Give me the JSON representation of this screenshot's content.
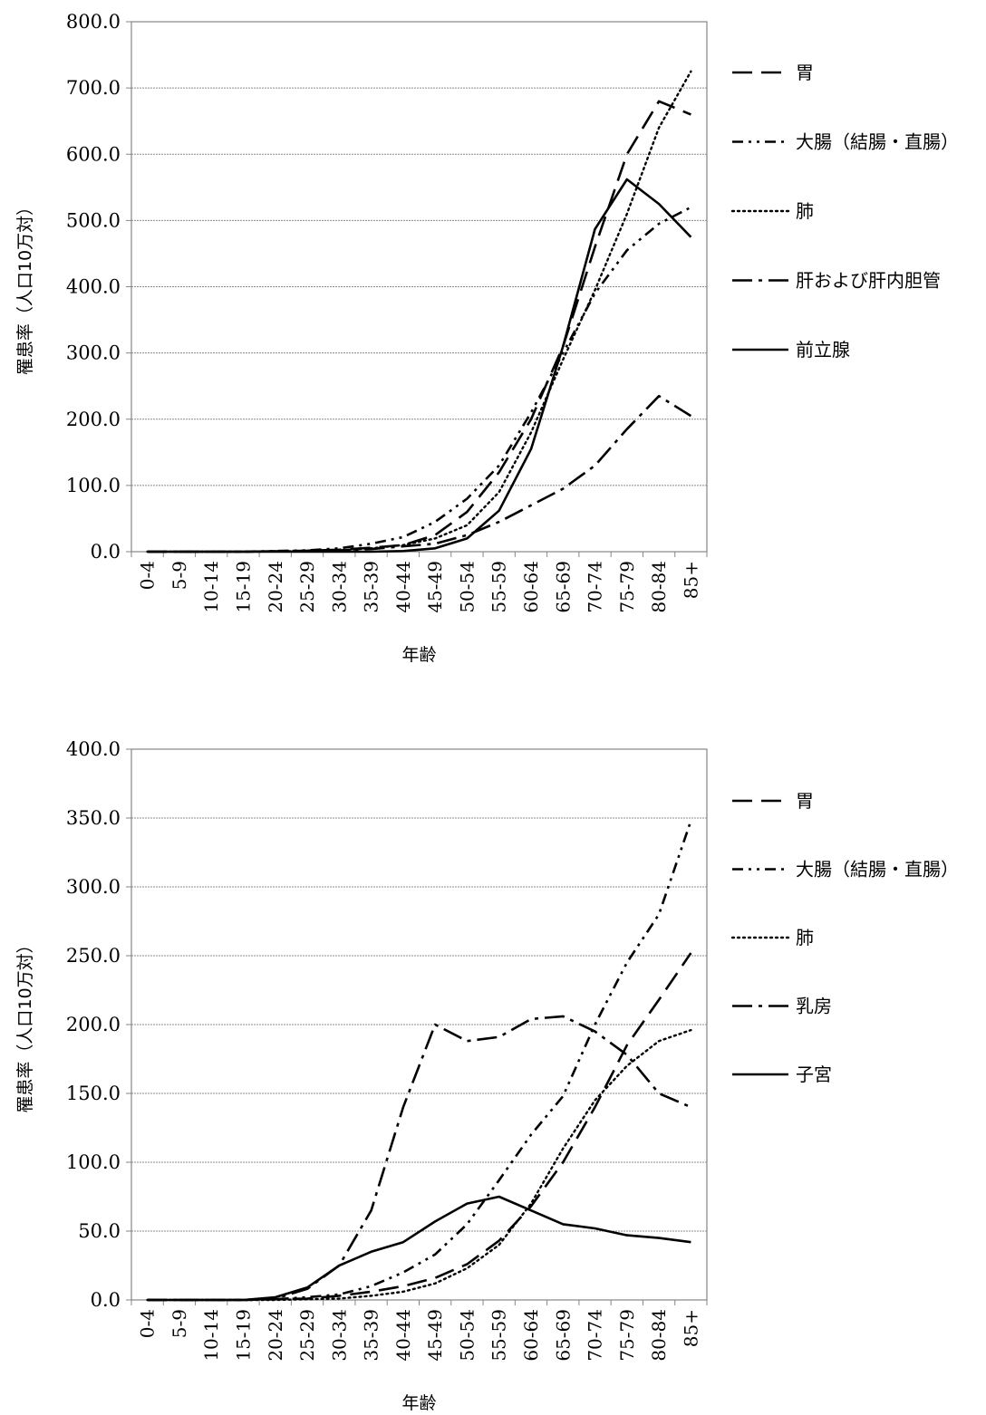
{
  "chart_data": [
    {
      "type": "line",
      "ylabel": "罹患率（人口10万対）",
      "xlabel": "年齢",
      "ylim": [
        0,
        800
      ],
      "y_ticks": [
        "0.0",
        "100.0",
        "200.0",
        "300.0",
        "400.0",
        "500.0",
        "600.0",
        "700.0",
        "800.0"
      ],
      "categories": [
        "0-4",
        "5-9",
        "10-14",
        "15-19",
        "20-24",
        "25-29",
        "30-34",
        "35-39",
        "40-44",
        "45-49",
        "50-54",
        "55-59",
        "60-64",
        "65-69",
        "70-74",
        "75-79",
        "80-84",
        "85+"
      ],
      "grid": true,
      "legend_position": "right",
      "series": [
        {
          "name": "胃",
          "dash": "long-dash",
          "values": [
            0,
            0,
            0,
            0,
            0.5,
            1.5,
            3,
            6,
            10,
            25,
            60,
            120,
            200,
            310,
            460,
            600,
            680,
            660
          ]
        },
        {
          "name": "大腸（結腸・直腸）",
          "dash": "dash-dot-dot",
          "values": [
            0,
            0,
            0,
            0,
            1,
            2,
            5,
            12,
            22,
            45,
            80,
            130,
            210,
            300,
            390,
            455,
            495,
            520
          ]
        },
        {
          "name": "肺",
          "dash": "dotted",
          "values": [
            0,
            0,
            0,
            0,
            0.5,
            1,
            2,
            5,
            10,
            20,
            40,
            90,
            180,
            290,
            395,
            510,
            640,
            725
          ]
        },
        {
          "name": "肝および肝内胆管",
          "dash": "dash-dot",
          "values": [
            0,
            0,
            0,
            0,
            0.5,
            1,
            2,
            4,
            8,
            12,
            25,
            45,
            70,
            95,
            130,
            185,
            235,
            205
          ]
        },
        {
          "name": "前立腺",
          "dash": "solid",
          "values": [
            0,
            0,
            0,
            0,
            0,
            0,
            0,
            0,
            1,
            5,
            20,
            62,
            155,
            310,
            487,
            562,
            525,
            475
          ]
        }
      ]
    },
    {
      "type": "line",
      "ylabel": "罹患率（人口10万対）",
      "xlabel": "年齢",
      "ylim": [
        0,
        400
      ],
      "y_ticks": [
        "0.0",
        "50.0",
        "100.0",
        "150.0",
        "200.0",
        "250.0",
        "300.0",
        "350.0",
        "400.0"
      ],
      "categories": [
        "0-4",
        "5-9",
        "10-14",
        "15-19",
        "20-24",
        "25-29",
        "30-34",
        "35-39",
        "40-44",
        "45-49",
        "50-54",
        "55-59",
        "60-64",
        "65-69",
        "70-74",
        "75-79",
        "80-84",
        "85+"
      ],
      "grid": true,
      "legend_position": "right",
      "series": [
        {
          "name": "胃",
          "dash": "long-dash",
          "values": [
            0,
            0,
            0,
            0,
            0.5,
            1,
            3,
            6,
            10,
            16,
            26,
            43,
            68,
            100,
            140,
            185,
            218,
            252
          ]
        },
        {
          "name": "大腸（結腸・直腸）",
          "dash": "dash-dot-dot",
          "values": [
            0,
            0,
            0,
            0,
            0.5,
            2,
            4,
            10,
            20,
            33,
            55,
            87,
            120,
            148,
            200,
            245,
            280,
            348
          ]
        },
        {
          "name": "肺",
          "dash": "dotted",
          "values": [
            0,
            0,
            0,
            0,
            0,
            0.5,
            1,
            3,
            6,
            12,
            23,
            40,
            70,
            110,
            145,
            170,
            188,
            196
          ]
        },
        {
          "name": "乳房",
          "dash": "dash-dot",
          "values": [
            0,
            0,
            0,
            0,
            1,
            8,
            25,
            65,
            140,
            200,
            188,
            191,
            204,
            206,
            195,
            178,
            150,
            140
          ]
        },
        {
          "name": "子宮",
          "dash": "solid",
          "values": [
            0,
            0,
            0,
            0,
            2,
            9,
            25,
            35,
            42,
            57,
            70,
            75,
            65,
            55,
            52,
            47,
            45,
            42
          ]
        }
      ]
    }
  ]
}
